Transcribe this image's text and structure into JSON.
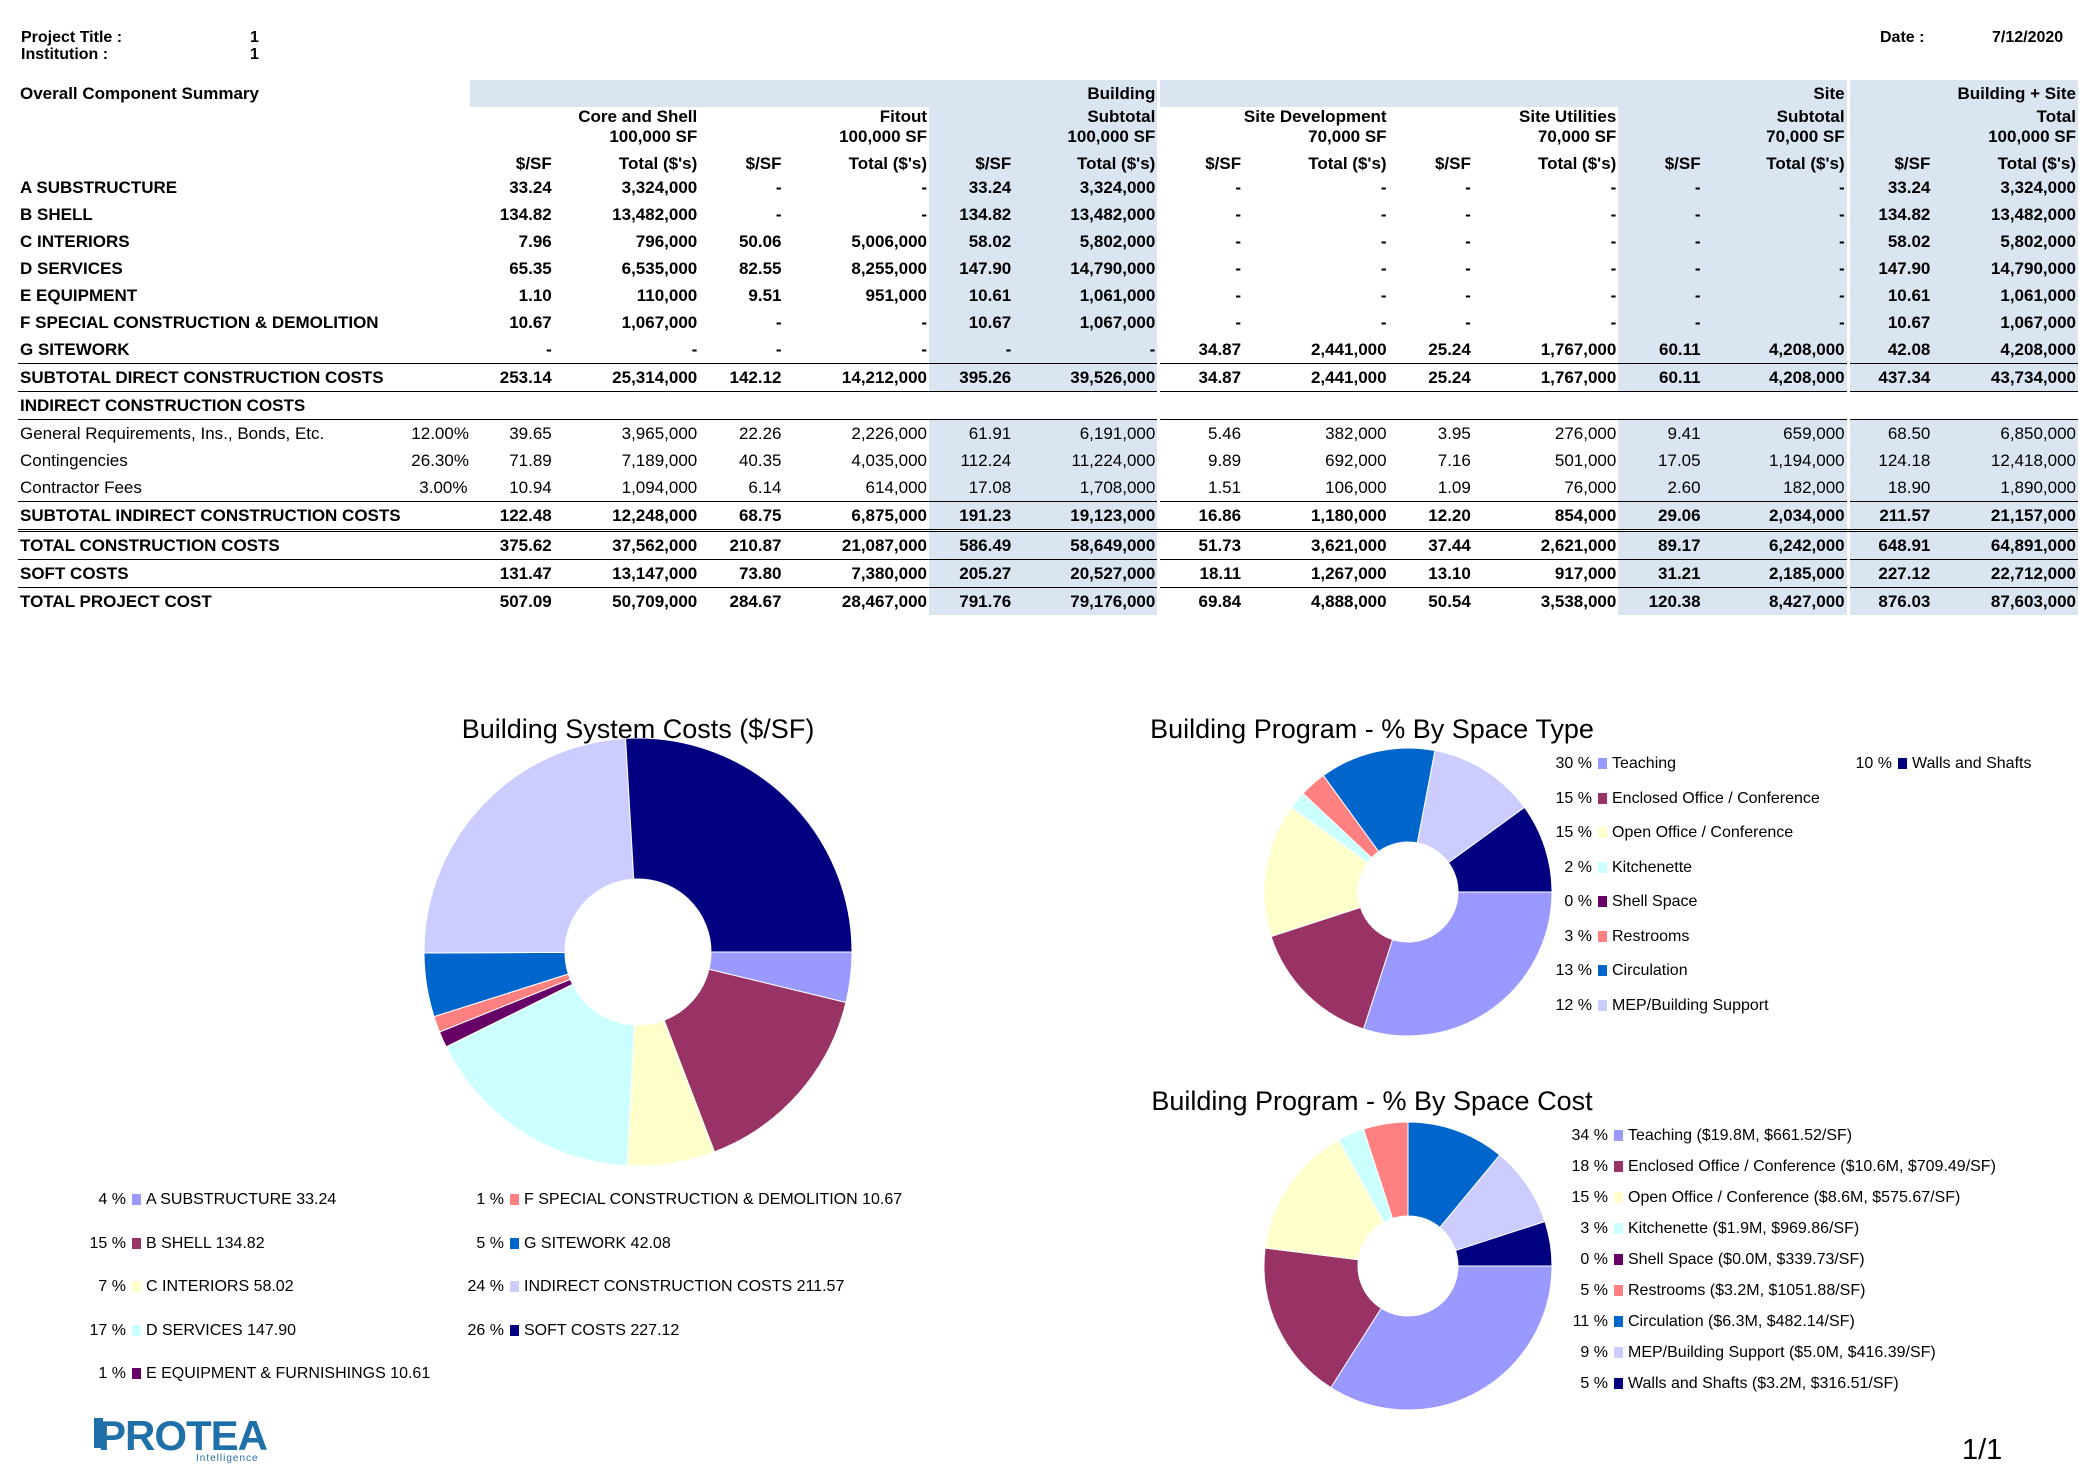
{
  "header": {
    "project_title_label": "Project Title :",
    "project_title_value": "1",
    "institution_label": "Institution :",
    "institution_value": "1",
    "date_label": "Date :",
    "date_value": "7/12/2020"
  },
  "summary": {
    "title": "Overall Component Summary",
    "groups": [
      "Building",
      "Site",
      "Building + Site"
    ],
    "subgroups": [
      {
        "name": "Core and Shell",
        "area": "100,000 SF"
      },
      {
        "name": "Fitout",
        "area": "100,000 SF"
      },
      {
        "name": "Subtotal",
        "area": "100,000 SF"
      },
      {
        "name": "Site Development",
        "area": "70,000 SF"
      },
      {
        "name": "Site Utilities",
        "area": "70,000 SF"
      },
      {
        "name": "Subtotal",
        "area": "70,000 SF"
      },
      {
        "name": "Total",
        "area": "100,000 SF"
      }
    ],
    "col_psf": "$/SF",
    "col_total": "Total ($'s)",
    "direct_rows": [
      {
        "label": "A SUBSTRUCTURE",
        "values": [
          "33.24",
          "3,324,000",
          "-",
          "-",
          "33.24",
          "3,324,000",
          "-",
          "-",
          "-",
          "-",
          "-",
          "-",
          "33.24",
          "3,324,000"
        ]
      },
      {
        "label": "B SHELL",
        "values": [
          "134.82",
          "13,482,000",
          "-",
          "-",
          "134.82",
          "13,482,000",
          "-",
          "-",
          "-",
          "-",
          "-",
          "-",
          "134.82",
          "13,482,000"
        ]
      },
      {
        "label": "C INTERIORS",
        "values": [
          "7.96",
          "796,000",
          "50.06",
          "5,006,000",
          "58.02",
          "5,802,000",
          "-",
          "-",
          "-",
          "-",
          "-",
          "-",
          "58.02",
          "5,802,000"
        ]
      },
      {
        "label": "D SERVICES",
        "values": [
          "65.35",
          "6,535,000",
          "82.55",
          "8,255,000",
          "147.90",
          "14,790,000",
          "-",
          "-",
          "-",
          "-",
          "-",
          "-",
          "147.90",
          "14,790,000"
        ]
      },
      {
        "label": "E EQUIPMENT",
        "values": [
          "1.10",
          "110,000",
          "9.51",
          "951,000",
          "10.61",
          "1,061,000",
          "-",
          "-",
          "-",
          "-",
          "-",
          "-",
          "10.61",
          "1,061,000"
        ]
      },
      {
        "label": "F SPECIAL CONSTRUCTION & DEMOLITION",
        "values": [
          "10.67",
          "1,067,000",
          "-",
          "-",
          "10.67",
          "1,067,000",
          "-",
          "-",
          "-",
          "-",
          "-",
          "-",
          "10.67",
          "1,067,000"
        ]
      },
      {
        "label": "G SITEWORK",
        "values": [
          "-",
          "-",
          "-",
          "-",
          "-",
          "-",
          "34.87",
          "2,441,000",
          "25.24",
          "1,767,000",
          "60.11",
          "4,208,000",
          "42.08",
          "4,208,000"
        ]
      }
    ],
    "subtotal_direct": {
      "label": "SUBTOTAL DIRECT CONSTRUCTION COSTS",
      "values": [
        "253.14",
        "25,314,000",
        "142.12",
        "14,212,000",
        "395.26",
        "39,526,000",
        "34.87",
        "2,441,000",
        "25.24",
        "1,767,000",
        "60.11",
        "4,208,000",
        "437.34",
        "43,734,000"
      ]
    },
    "indirect_title": "INDIRECT CONSTRUCTION COSTS",
    "indirect_rows": [
      {
        "label": "General Requirements, Ins., Bonds, Etc.",
        "rate": "12.00%",
        "values": [
          "39.65",
          "3,965,000",
          "22.26",
          "2,226,000",
          "61.91",
          "6,191,000",
          "5.46",
          "382,000",
          "3.95",
          "276,000",
          "9.41",
          "659,000",
          "68.50",
          "6,850,000"
        ]
      },
      {
        "label": "Contingencies",
        "rate": "26.30%",
        "values": [
          "71.89",
          "7,189,000",
          "40.35",
          "4,035,000",
          "112.24",
          "11,224,000",
          "9.89",
          "692,000",
          "7.16",
          "501,000",
          "17.05",
          "1,194,000",
          "124.18",
          "12,418,000"
        ]
      },
      {
        "label": "Contractor Fees",
        "rate": "3.00%",
        "values": [
          "10.94",
          "1,094,000",
          "6.14",
          "614,000",
          "17.08",
          "1,708,000",
          "1.51",
          "106,000",
          "1.09",
          "76,000",
          "2.60",
          "182,000",
          "18.90",
          "1,890,000"
        ]
      }
    ],
    "subtotal_indirect": {
      "label": "SUBTOTAL INDIRECT CONSTRUCTION COSTS",
      "values": [
        "122.48",
        "12,248,000",
        "68.75",
        "6,875,000",
        "191.23",
        "19,123,000",
        "16.86",
        "1,180,000",
        "12.20",
        "854,000",
        "29.06",
        "2,034,000",
        "211.57",
        "21,157,000"
      ]
    },
    "total_construction": {
      "label": "TOTAL CONSTRUCTION COSTS",
      "values": [
        "375.62",
        "37,562,000",
        "210.87",
        "21,087,000",
        "586.49",
        "58,649,000",
        "51.73",
        "3,621,000",
        "37.44",
        "2,621,000",
        "89.17",
        "6,242,000",
        "648.91",
        "64,891,000"
      ]
    },
    "soft_costs": {
      "label": "SOFT COSTS",
      "values": [
        "131.47",
        "13,147,000",
        "73.80",
        "7,380,000",
        "205.27",
        "20,527,000",
        "18.11",
        "1,267,000",
        "13.10",
        "917,000",
        "31.21",
        "2,185,000",
        "227.12",
        "22,712,000"
      ]
    },
    "total_project": {
      "label": "TOTAL PROJECT COST",
      "values": [
        "507.09",
        "50,709,000",
        "284.67",
        "28,467,000",
        "791.76",
        "79,176,000",
        "69.84",
        "4,888,000",
        "50.54",
        "3,538,000",
        "120.38",
        "8,427,000",
        "876.03",
        "87,603,000"
      ]
    }
  },
  "chart_data": [
    {
      "type": "pie",
      "title": "Building System Costs ($/SF)",
      "slices": [
        {
          "label": "A SUBSTRUCTURE 33.24",
          "pct_label": "4 %",
          "value": 33.24,
          "color": "#9999ff"
        },
        {
          "label": "B SHELL 134.82",
          "pct_label": "15 %",
          "value": 134.82,
          "color": "#993366"
        },
        {
          "label": "C INTERIORS 58.02",
          "pct_label": "7 %",
          "value": 58.02,
          "color": "#ffffcc"
        },
        {
          "label": "D SERVICES 147.90",
          "pct_label": "17 %",
          "value": 147.9,
          "color": "#ccffff"
        },
        {
          "label": "E EQUIPMENT & FURNISHINGS 10.61",
          "pct_label": "1 %",
          "value": 10.61,
          "color": "#660066"
        },
        {
          "label": "F SPECIAL CONSTRUCTION & DEMOLITION 10.67",
          "pct_label": "1 %",
          "value": 10.67,
          "color": "#ff8080"
        },
        {
          "label": "G SITEWORK 42.08",
          "pct_label": "5 %",
          "value": 42.08,
          "color": "#0066cc"
        },
        {
          "label": "INDIRECT CONSTRUCTION COSTS 211.57",
          "pct_label": "24 %",
          "value": 211.57,
          "color": "#ccccff"
        },
        {
          "label": "SOFT COSTS 227.12",
          "pct_label": "26 %",
          "value": 227.12,
          "color": "#000080"
        }
      ]
    },
    {
      "type": "pie",
      "title": "Building Program - % By Space Type",
      "slices": [
        {
          "label": "Teaching",
          "pct_label": "30 %",
          "value": 30,
          "color": "#9999ff"
        },
        {
          "label": "Enclosed Office / Conference",
          "pct_label": "15 %",
          "value": 15,
          "color": "#993366"
        },
        {
          "label": "Open Office / Conference",
          "pct_label": "15 %",
          "value": 15,
          "color": "#ffffcc"
        },
        {
          "label": "Kitchenette",
          "pct_label": "2 %",
          "value": 2,
          "color": "#ccffff"
        },
        {
          "label": "Shell Space",
          "pct_label": "0 %",
          "value": 0,
          "color": "#660066"
        },
        {
          "label": "Restrooms",
          "pct_label": "3 %",
          "value": 3,
          "color": "#ff8080"
        },
        {
          "label": "Circulation",
          "pct_label": "13 %",
          "value": 13,
          "color": "#0066cc"
        },
        {
          "label": "MEP/Building Support",
          "pct_label": "12 %",
          "value": 12,
          "color": "#ccccff"
        },
        {
          "label": "Walls and Shafts",
          "pct_label": "10 %",
          "value": 10,
          "color": "#000080"
        }
      ]
    },
    {
      "type": "pie",
      "title": "Building Program - % By Space Cost",
      "slices": [
        {
          "label": "Teaching ($19.8M, $661.52/SF)",
          "pct_label": "34 %",
          "value": 34,
          "color": "#9999ff"
        },
        {
          "label": "Enclosed Office / Conference ($10.6M, $709.49/SF)",
          "pct_label": "18 %",
          "value": 18,
          "color": "#993366"
        },
        {
          "label": "Open Office / Conference ($8.6M, $575.67/SF)",
          "pct_label": "15 %",
          "value": 15,
          "color": "#ffffcc"
        },
        {
          "label": "Kitchenette ($1.9M, $969.86/SF)",
          "pct_label": "3 %",
          "value": 3,
          "color": "#ccffff"
        },
        {
          "label": "Shell Space ($0.0M, $339.73/SF)",
          "pct_label": "0 %",
          "value": 0,
          "color": "#660066"
        },
        {
          "label": "Restrooms ($3.2M, $1051.88/SF)",
          "pct_label": "5 %",
          "value": 5,
          "color": "#ff8080"
        },
        {
          "label": "Circulation ($6.3M, $482.14/SF)",
          "pct_label": "11 %",
          "value": 11,
          "color": "#0066cc"
        },
        {
          "label": "MEP/Building Support ($5.0M, $416.39/SF)",
          "pct_label": "9 %",
          "value": 9,
          "color": "#ccccff"
        },
        {
          "label": "Walls and Shafts ($3.2M, $316.51/SF)",
          "pct_label": "5 %",
          "value": 5,
          "color": "#000080"
        }
      ]
    }
  ],
  "footer": {
    "logo_text": "PROTEA",
    "logo_subtext": "Intelligence",
    "page_number": "1/1"
  }
}
